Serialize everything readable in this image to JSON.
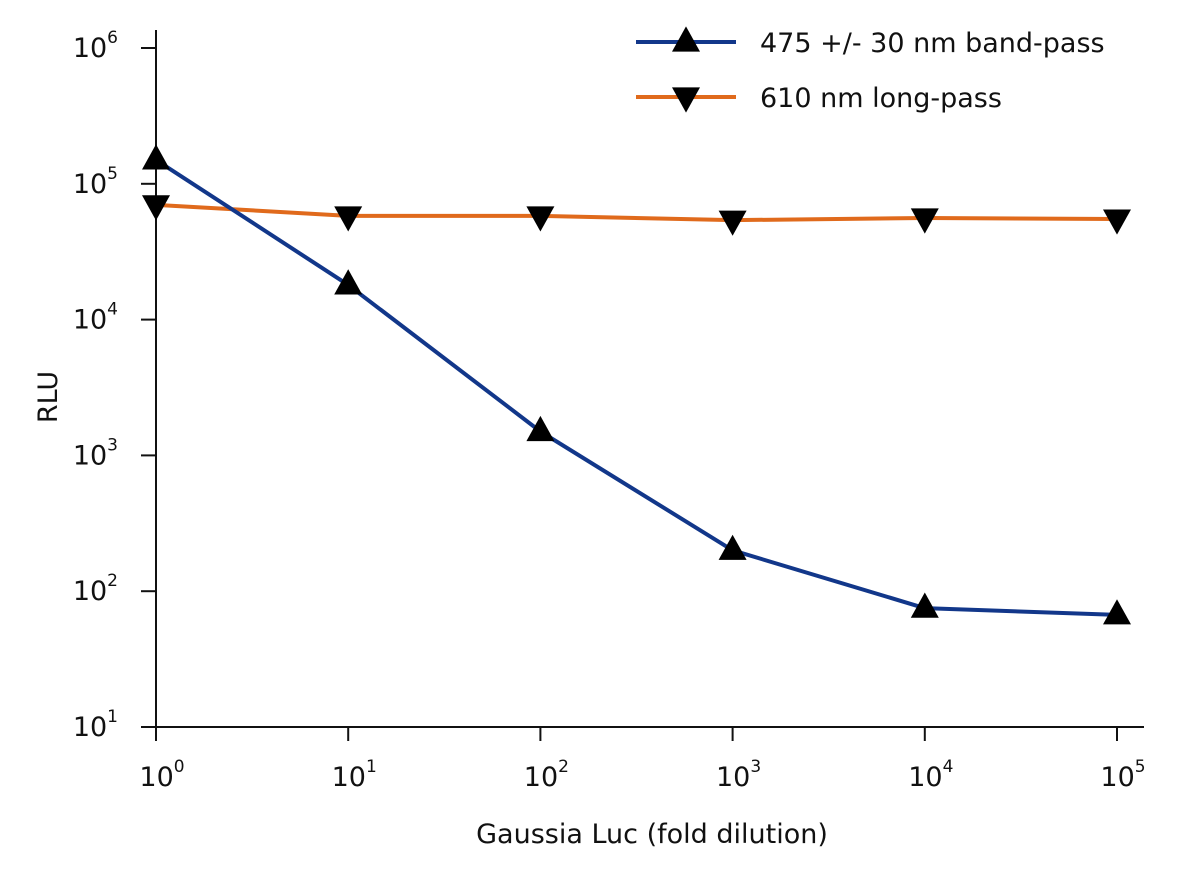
{
  "chart_data": {
    "type": "line",
    "title": "",
    "xlabel": "Gaussia Luc (fold dilution)",
    "ylabel": "RLU",
    "xscale": "log",
    "yscale": "log",
    "xlim": [
      1,
      100000
    ],
    "ylim": [
      10,
      1000000
    ],
    "xticks": [
      {
        "base": "10",
        "exp": "0",
        "value": 1
      },
      {
        "base": "10",
        "exp": "1",
        "value": 10
      },
      {
        "base": "10",
        "exp": "2",
        "value": 100
      },
      {
        "base": "10",
        "exp": "3",
        "value": 1000
      },
      {
        "base": "10",
        "exp": "4",
        "value": 10000
      },
      {
        "base": "10",
        "exp": "5",
        "value": 100000
      }
    ],
    "yticks": [
      {
        "base": "10",
        "exp": "1",
        "value": 10
      },
      {
        "base": "10",
        "exp": "2",
        "value": 100
      },
      {
        "base": "10",
        "exp": "3",
        "value": 1000
      },
      {
        "base": "10",
        "exp": "4",
        "value": 10000
      },
      {
        "base": "10",
        "exp": "5",
        "value": 100000
      },
      {
        "base": "10",
        "exp": "6",
        "value": 1000000
      }
    ],
    "grid": false,
    "legend_position": "top-right",
    "x": [
      1,
      10,
      100,
      1000,
      10000,
      100000
    ],
    "series": [
      {
        "name": "475 +/- 30 nm band-pass",
        "color": "#12378a",
        "marker": "triangle-up",
        "values": [
          150000,
          18000,
          1500,
          200,
          75,
          67
        ]
      },
      {
        "name": "610 nm long-pass",
        "color": "#e06a1c",
        "marker": "triangle-down",
        "values": [
          70000,
          58000,
          58000,
          54000,
          56000,
          55000
        ]
      }
    ]
  }
}
